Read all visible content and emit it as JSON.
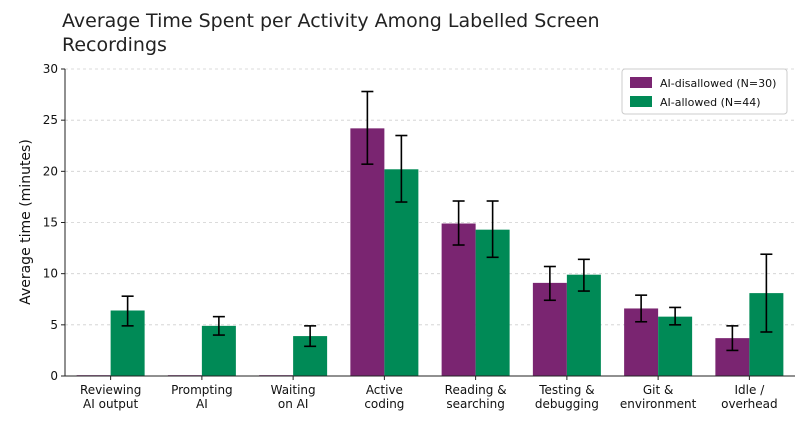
{
  "chart_data": {
    "type": "bar",
    "title_lines": [
      "Average Time Spent per Activity Among Labelled Screen",
      "Recordings"
    ],
    "ylabel": "Average time (minutes)",
    "xlabel": "",
    "ylim": [
      0,
      30
    ],
    "yticks": [
      0,
      5,
      10,
      15,
      20,
      25,
      30
    ],
    "grid": true,
    "legend_position": "top-right",
    "categories": [
      [
        "Reviewing",
        "AI output"
      ],
      [
        "Prompting",
        "AI"
      ],
      [
        "Waiting",
        "on AI"
      ],
      [
        "Active",
        "coding"
      ],
      [
        "Reading &",
        "searching"
      ],
      [
        "Testing &",
        "debugging"
      ],
      [
        "Git &",
        "environment"
      ],
      [
        "Idle /",
        "overhead"
      ]
    ],
    "series": [
      {
        "name": "AI-disallowed (N=30)",
        "color": "#7a2571",
        "values": [
          0,
          0,
          0,
          24.2,
          14.9,
          9.1,
          6.6,
          3.7
        ],
        "err_low": [
          0,
          0,
          0,
          20.7,
          12.8,
          7.4,
          5.3,
          2.5
        ],
        "err_high": [
          0,
          0,
          0,
          27.8,
          17.1,
          10.7,
          7.9,
          4.9
        ]
      },
      {
        "name": "AI-allowed (N=44)",
        "color": "#008a56",
        "values": [
          6.4,
          4.9,
          3.9,
          20.2,
          14.3,
          9.9,
          5.8,
          8.1
        ],
        "err_low": [
          4.9,
          4.0,
          2.9,
          17.0,
          11.6,
          8.3,
          5.0,
          4.3
        ],
        "err_high": [
          7.8,
          5.8,
          4.9,
          23.5,
          17.1,
          11.4,
          6.7,
          11.9
        ]
      }
    ]
  }
}
